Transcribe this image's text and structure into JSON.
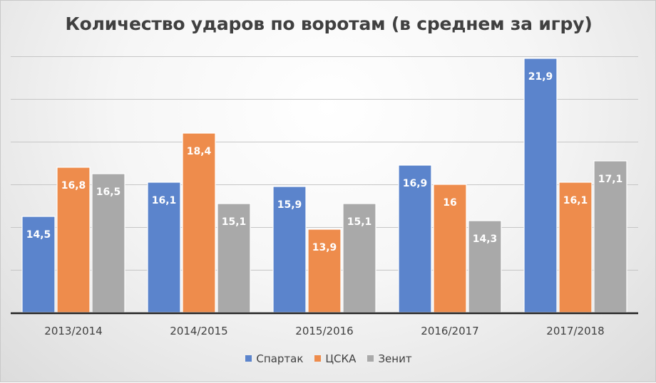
{
  "chart_data": {
    "type": "bar",
    "title": "Количество ударов по воротам (в среднем за игру)",
    "categories": [
      "2013/2014",
      "2014/2015",
      "2015/2016",
      "2016/2017",
      "2017/2018"
    ],
    "series": [
      {
        "name": "Спартак",
        "color": "#5b84cc",
        "values": [
          14.5,
          16.1,
          15.9,
          16.9,
          21.9
        ],
        "labels": [
          "14,5",
          "16,1",
          "15,9",
          "16,9",
          "21,9"
        ]
      },
      {
        "name": "ЦСКА",
        "color": "#ee8c4c",
        "values": [
          16.8,
          18.4,
          13.9,
          16.0,
          16.1
        ],
        "labels": [
          "16,8",
          "18,4",
          "13,9",
          "16",
          "16,1"
        ]
      },
      {
        "name": "Зенит",
        "color": "#a9a9a9",
        "values": [
          16.5,
          15.1,
          15.1,
          14.3,
          17.1
        ],
        "labels": [
          "16,5",
          "15,1",
          "15,1",
          "14,3",
          "17,1"
        ]
      }
    ],
    "ylim": [
      10,
      22
    ],
    "grid": true,
    "legend": "bottom"
  }
}
